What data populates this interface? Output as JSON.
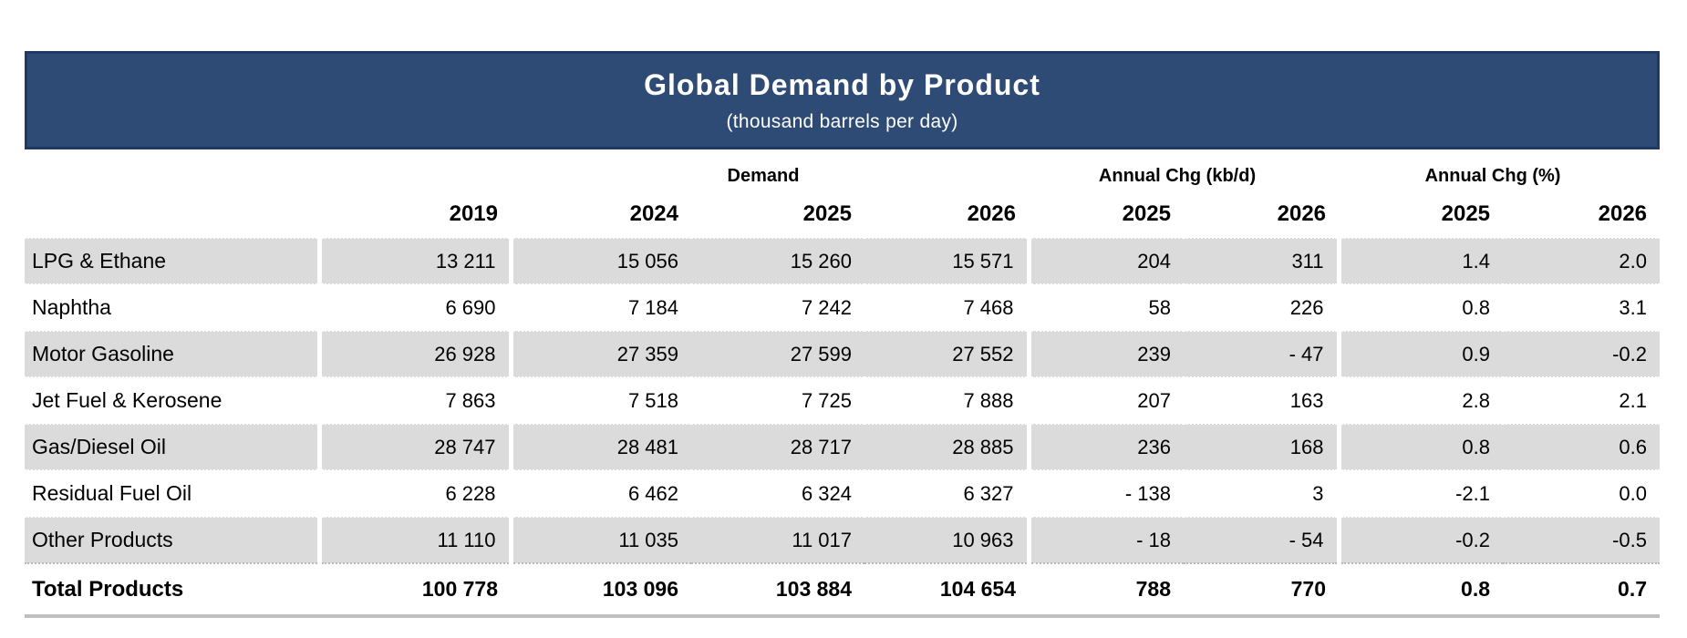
{
  "title": "Global Demand by Product",
  "subtitle": "(thousand barrels per day)",
  "colors": {
    "banner_bg": "#2E4B76",
    "banner_border": "#1F3864",
    "banner_text": "#FFFFFF",
    "row_shading": "#DBDBDB",
    "bottom_rule": "#BFBFBF",
    "text": "#000000"
  },
  "table": {
    "group_headers": {
      "demand": "Demand",
      "chg_kbd": "Annual Chg (kb/d)",
      "chg_pct": "Annual Chg (%)"
    },
    "year_headers": [
      "2019",
      "2024",
      "2025",
      "2026",
      "2025",
      "2026",
      "2025",
      "2026"
    ],
    "rows": [
      {
        "label": "LPG & Ethane",
        "values": [
          "13 211",
          "15 056",
          "15 260",
          "15 571",
          "204",
          "311",
          "1.4",
          "2.0"
        ]
      },
      {
        "label": "Naphtha",
        "values": [
          "6 690",
          "7 184",
          "7 242",
          "7 468",
          "58",
          "226",
          "0.8",
          "3.1"
        ]
      },
      {
        "label": "Motor Gasoline",
        "values": [
          "26 928",
          "27 359",
          "27 599",
          "27 552",
          "239",
          "- 47",
          "0.9",
          "-0.2"
        ]
      },
      {
        "label": "Jet Fuel & Kerosene",
        "values": [
          "7 863",
          "7 518",
          "7 725",
          "7 888",
          "207",
          "163",
          "2.8",
          "2.1"
        ]
      },
      {
        "label": "Gas/Diesel Oil",
        "values": [
          "28 747",
          "28 481",
          "28 717",
          "28 885",
          "236",
          "168",
          "0.8",
          "0.6"
        ]
      },
      {
        "label": "Residual Fuel Oil",
        "values": [
          "6 228",
          "6 462",
          "6 324",
          "6 327",
          "- 138",
          "3",
          "-2.1",
          "0.0"
        ]
      },
      {
        "label": "Other Products",
        "values": [
          "11 110",
          "11 035",
          "11 017",
          "10 963",
          "- 18",
          "- 54",
          "-0.2",
          "-0.5"
        ]
      }
    ],
    "total_row": {
      "label": "Total Products",
      "values": [
        "100 778",
        "103 096",
        "103 884",
        "104 654",
        "788",
        "770",
        "0.8",
        "0.7"
      ]
    }
  },
  "chart_data": {
    "type": "table",
    "title": "Global Demand by Product",
    "subtitle": "(thousand barrels per day)",
    "column_groups": [
      {
        "label": "Demand",
        "columns": [
          "2019",
          "2024",
          "2025",
          "2026"
        ]
      },
      {
        "label": "Annual Chg (kb/d)",
        "columns": [
          "2025",
          "2026"
        ]
      },
      {
        "label": "Annual Chg (%)",
        "columns": [
          "2025",
          "2026"
        ]
      }
    ],
    "columns": [
      "Demand 2019",
      "Demand 2024",
      "Demand 2025",
      "Demand 2026",
      "Annual Chg kb/d 2025",
      "Annual Chg kb/d 2026",
      "Annual Chg % 2025",
      "Annual Chg % 2026"
    ],
    "rows": [
      {
        "product": "LPG & Ethane",
        "values": [
          13211,
          15056,
          15260,
          15571,
          204,
          311,
          1.4,
          2.0
        ]
      },
      {
        "product": "Naphtha",
        "values": [
          6690,
          7184,
          7242,
          7468,
          58,
          226,
          0.8,
          3.1
        ]
      },
      {
        "product": "Motor Gasoline",
        "values": [
          26928,
          27359,
          27599,
          27552,
          239,
          -47,
          0.9,
          -0.2
        ]
      },
      {
        "product": "Jet Fuel & Kerosene",
        "values": [
          7863,
          7518,
          7725,
          7888,
          207,
          163,
          2.8,
          2.1
        ]
      },
      {
        "product": "Gas/Diesel Oil",
        "values": [
          28747,
          28481,
          28717,
          28885,
          236,
          168,
          0.8,
          0.6
        ]
      },
      {
        "product": "Residual Fuel Oil",
        "values": [
          6228,
          6462,
          6324,
          6327,
          -138,
          3,
          -2.1,
          0.0
        ]
      },
      {
        "product": "Other Products",
        "values": [
          11110,
          11035,
          11017,
          10963,
          -18,
          -54,
          -0.2,
          -0.5
        ]
      },
      {
        "product": "Total Products",
        "values": [
          100778,
          103096,
          103884,
          104654,
          788,
          770,
          0.8,
          0.7
        ]
      }
    ]
  }
}
